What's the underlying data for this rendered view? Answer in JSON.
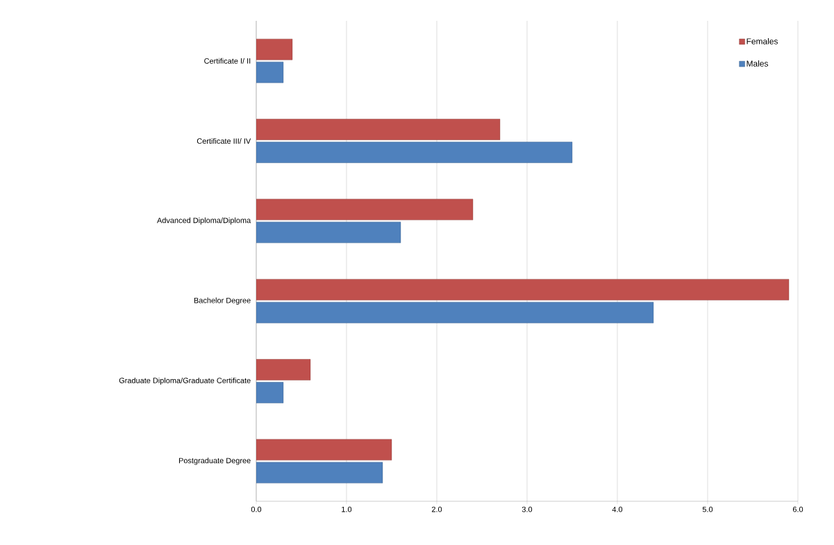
{
  "chart_data": {
    "type": "bar",
    "orientation": "horizontal",
    "categories": [
      "Certificate I/ II",
      "Certificate III/ IV",
      "Advanced Diploma/Diploma",
      "Bachelor Degree",
      "Graduate Diploma/Graduate Certificate",
      "Postgraduate Degree"
    ],
    "series": [
      {
        "name": "Females",
        "color": "#c0504d",
        "values": [
          0.4,
          2.7,
          2.4,
          5.9,
          0.6,
          1.5
        ]
      },
      {
        "name": "Males",
        "color": "#4f81bd",
        "values": [
          0.3,
          3.5,
          1.6,
          4.4,
          0.3,
          1.4
        ]
      }
    ],
    "xlim": [
      0,
      6
    ],
    "xticks": [
      {
        "value": 0,
        "label": "0.0"
      },
      {
        "value": 1,
        "label": "1.0"
      },
      {
        "value": 2,
        "label": "2.0"
      },
      {
        "value": 3,
        "label": "3.0"
      },
      {
        "value": 4,
        "label": "4.0"
      },
      {
        "value": 5,
        "label": "5.0"
      },
      {
        "value": 6,
        "label": "6.0"
      }
    ],
    "grid": "x",
    "legend": "top right"
  }
}
